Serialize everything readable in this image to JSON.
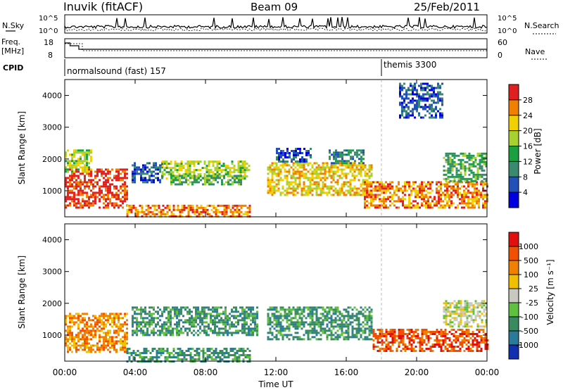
{
  "header": {
    "station": "Inuvik (fitACF)",
    "beam": "Beam 09",
    "date": "25/Feb/2011"
  },
  "top_panels": {
    "nsky_label": "N.Sky",
    "nsearch_label": "N.Search",
    "noise_ticks": [
      "10^5",
      "10^0"
    ],
    "freq_label": "Freq.",
    "freq_unit": "[MHz]",
    "freq_ticks": [
      "18",
      "8"
    ],
    "nave_label": "Nave",
    "nave_ticks": [
      "60",
      "0"
    ],
    "cpid_label": "CPID",
    "cpid_segments": [
      {
        "name": "normalsound (fast) 157",
        "start_hour": 0
      },
      {
        "name": "themis 3300",
        "start_hour": 18
      }
    ]
  },
  "chart_data": [
    {
      "type": "heatmap",
      "name": "power",
      "ylabel": "Slant Range [km]",
      "xlabel": "",
      "x_ticks": [
        "00:00",
        "04:00",
        "08:00",
        "12:00",
        "16:00",
        "20:00",
        "00:00"
      ],
      "xlim_hours": [
        0,
        24
      ],
      "y_ticks": [
        1000,
        2000,
        3000,
        4000
      ],
      "ylim": [
        180,
        4500
      ],
      "colorbar": {
        "label": "Power [dB]",
        "ticks": [
          "28",
          "24",
          "20",
          "16",
          "12",
          "8",
          "4"
        ],
        "colors": [
          "#0000e0",
          "#2050b8",
          "#3a8a70",
          "#1aa040",
          "#a8d030",
          "#f0d000",
          "#f08000",
          "#e02020"
        ]
      },
      "echo_regions": [
        {
          "start_hour": 0.0,
          "end_hour": 3.6,
          "low_km": 500,
          "high_km": 1700,
          "level": 7
        },
        {
          "start_hour": 0.0,
          "end_hour": 1.5,
          "low_km": 1600,
          "high_km": 2300,
          "level": 4
        },
        {
          "start_hour": 3.8,
          "end_hour": 5.5,
          "low_km": 1300,
          "high_km": 1900,
          "level": 1
        },
        {
          "start_hour": 5.5,
          "end_hour": 10.5,
          "low_km": 1400,
          "high_km": 1950,
          "level": 4
        },
        {
          "start_hour": 6.0,
          "end_hour": 10.0,
          "low_km": 1200,
          "high_km": 1500,
          "level": 3
        },
        {
          "start_hour": 3.5,
          "end_hour": 10.5,
          "low_km": 200,
          "high_km": 560,
          "level": 6
        },
        {
          "start_hour": 11.5,
          "end_hour": 17.5,
          "low_km": 900,
          "high_km": 1900,
          "level": 5
        },
        {
          "start_hour": 12.0,
          "end_hour": 14.0,
          "low_km": 1900,
          "high_km": 2350,
          "level": 1
        },
        {
          "start_hour": 15.0,
          "end_hour": 17.0,
          "low_km": 1850,
          "high_km": 2300,
          "level": 2
        },
        {
          "start_hour": 17.0,
          "end_hour": 24.0,
          "low_km": 500,
          "high_km": 1300,
          "level": 6
        },
        {
          "start_hour": 21.5,
          "end_hour": 24.0,
          "low_km": 1300,
          "high_km": 2200,
          "level": 3
        },
        {
          "start_hour": 19.0,
          "end_hour": 21.5,
          "low_km": 3300,
          "high_km": 4400,
          "level": 1
        }
      ]
    },
    {
      "type": "heatmap",
      "name": "velocity",
      "ylabel": "Slant Range [km]",
      "xlabel": "Time UT",
      "x_ticks": [
        "00:00",
        "04:00",
        "08:00",
        "12:00",
        "16:00",
        "20:00",
        "00:00"
      ],
      "xlim_hours": [
        0,
        24
      ],
      "y_ticks": [
        1000,
        2000,
        3000,
        4000
      ],
      "ylim": [
        180,
        4500
      ],
      "colorbar": {
        "label": "Velocity [m s⁻¹]",
        "ticks": [
          "1000",
          "500",
          "100",
          "25",
          "-25",
          "-100",
          "-500",
          "-1000"
        ],
        "colors": [
          "#1030b0",
          "#2a7a9a",
          "#3a8a60",
          "#60c040",
          "#c8c8c0",
          "#f0c000",
          "#f08000",
          "#f05000",
          "#e01010"
        ]
      },
      "echo_regions": [
        {
          "start_hour": 0.0,
          "end_hour": 3.6,
          "low_km": 500,
          "high_km": 1700,
          "level": 6
        },
        {
          "start_hour": 3.8,
          "end_hour": 11.0,
          "low_km": 1000,
          "high_km": 1900,
          "level": 2
        },
        {
          "start_hour": 11.5,
          "end_hour": 17.5,
          "low_km": 900,
          "high_km": 1900,
          "level": 2
        },
        {
          "start_hour": 3.5,
          "end_hour": 10.5,
          "low_km": 200,
          "high_km": 600,
          "level": 2
        },
        {
          "start_hour": 17.5,
          "end_hour": 24.0,
          "low_km": 500,
          "high_km": 1200,
          "level": 7
        },
        {
          "start_hour": 21.5,
          "end_hour": 24.0,
          "low_km": 1300,
          "high_km": 2100,
          "level": 4
        }
      ]
    }
  ]
}
